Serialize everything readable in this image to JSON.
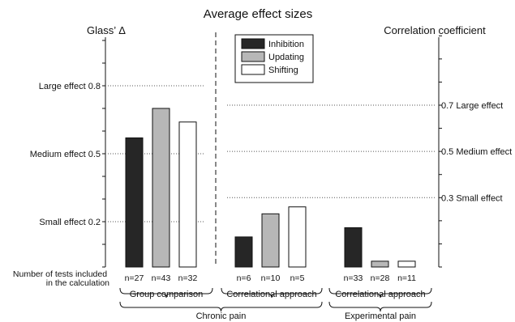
{
  "chart_data": {
    "type": "bar",
    "title": "Average effect sizes",
    "ylabel_left": "Glass’ Δ",
    "ylabel_right": "Correlation coefficient",
    "ylim_left": [
      0,
      1.08
    ],
    "ylim_right": [
      0,
      1.0
    ],
    "left_axis_thresholds": [
      {
        "label": "Large effect 0.8",
        "value": 0.8
      },
      {
        "label": "Medium effect 0.5",
        "value": 0.5
      },
      {
        "label": "Small effect 0.2",
        "value": 0.2
      }
    ],
    "right_axis_thresholds": [
      {
        "label": "0.7 Large effect",
        "value": 0.7
      },
      {
        "label": "0.5 Medium effect",
        "value": 0.5
      },
      {
        "label": "0.3 Small effect",
        "value": 0.3
      }
    ],
    "series": [
      {
        "name": "Inhibition",
        "color": "#262626"
      },
      {
        "name": "Updating",
        "color": "#b7b7b7"
      },
      {
        "name": "Shifting",
        "color": "#ffffff"
      }
    ],
    "legend_position": "top-center",
    "groups": [
      {
        "label": "Group comparison",
        "scale": "left",
        "values": [
          0.57,
          0.7,
          0.64
        ],
        "counts": [
          "n=27",
          "n=43",
          "n=32"
        ]
      },
      {
        "label": "Correlational approach",
        "scale": "right",
        "values": [
          0.13,
          0.23,
          0.26
        ],
        "counts": [
          "n=6",
          "n=10",
          "n=5"
        ]
      },
      {
        "label": "Correlational approach",
        "scale": "right",
        "values": [
          0.17,
          0.025,
          0.025
        ],
        "counts": [
          "n=33",
          "n=28",
          "n=11"
        ]
      }
    ],
    "counts_row_label": [
      "Number of tests included",
      "in the calculation"
    ],
    "conditions": [
      {
        "label": "Chronic pain",
        "groups": [
          0,
          1
        ]
      },
      {
        "label": "Experimental pain",
        "groups": [
          2
        ]
      }
    ]
  }
}
